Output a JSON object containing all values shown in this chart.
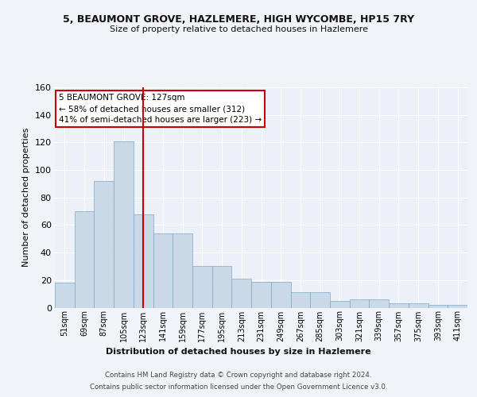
{
  "title1": "5, BEAUMONT GROVE, HAZLEMERE, HIGH WYCOMBE, HP15 7RY",
  "title2": "Size of property relative to detached houses in Hazlemere",
  "xlabel": "Distribution of detached houses by size in Hazlemere",
  "ylabel": "Number of detached properties",
  "categories": [
    "51sqm",
    "69sqm",
    "87sqm",
    "105sqm",
    "123sqm",
    "141sqm",
    "159sqm",
    "177sqm",
    "195sqm",
    "213sqm",
    "231sqm",
    "249sqm",
    "267sqm",
    "285sqm",
    "303sqm",
    "321sqm",
    "339sqm",
    "357sqm",
    "375sqm",
    "393sqm",
    "411sqm"
  ],
  "values": [
    18,
    70,
    92,
    121,
    68,
    54,
    54,
    30,
    30,
    21,
    19,
    19,
    11,
    11,
    5,
    6,
    6,
    3,
    3,
    2,
    2
  ],
  "bar_color": "#c9d9e8",
  "bar_edge_color": "#7baac9",
  "vline_x": 4.5,
  "vline_color": "#cc0000",
  "annotation_text": "5 BEAUMONT GROVE: 127sqm\n← 58% of detached houses are smaller (312)\n41% of semi-detached houses are larger (223) →",
  "annotation_box_color": "#ffffff",
  "annotation_box_edge": "#cc0000",
  "ylim": [
    0,
    160
  ],
  "yticks": [
    0,
    20,
    40,
    60,
    80,
    100,
    120,
    140,
    160
  ],
  "footer1": "Contains HM Land Registry data © Crown copyright and database right 2024.",
  "footer2": "Contains public sector information licensed under the Open Government Licence v3.0.",
  "bg_color": "#f0f4f9",
  "plot_bg_color": "#edf1f7"
}
